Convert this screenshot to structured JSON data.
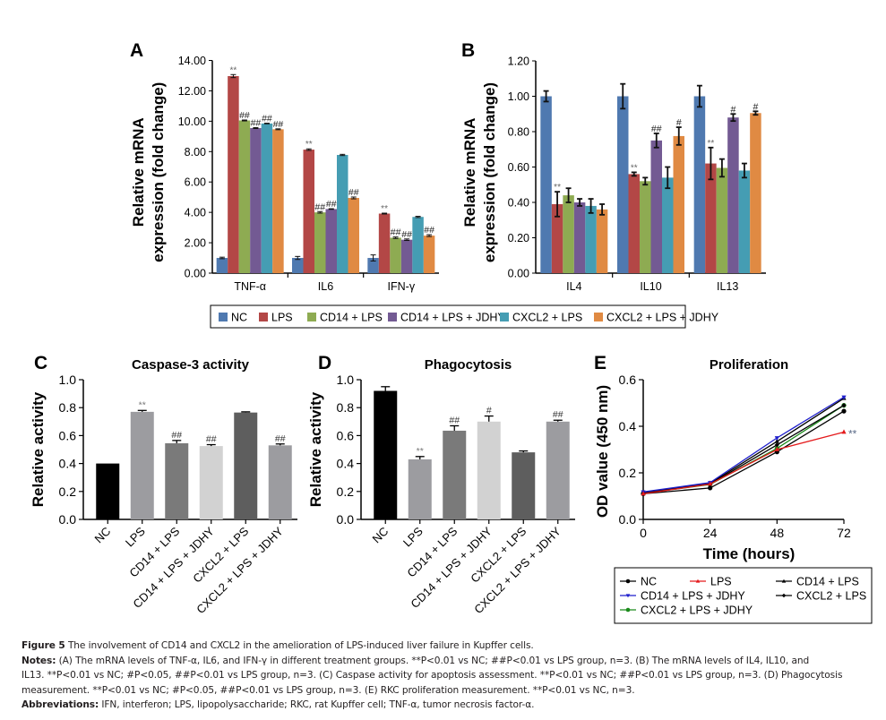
{
  "figure": {
    "panel_labels": [
      "A",
      "B",
      "C",
      "D",
      "E"
    ],
    "bar_legend": {
      "items": [
        {
          "label": "NC",
          "color": "#4f79b0"
        },
        {
          "label": "LPS",
          "color": "#b34746"
        },
        {
          "label": "CD14 + LPS",
          "color": "#8eab52"
        },
        {
          "label": "CD14 + LPS + JDHY",
          "color": "#735a93"
        },
        {
          "label": "CXCL2 + LPS",
          "color": "#459db3"
        },
        {
          "label": "CXCL2 + LPS + JDHY",
          "color": "#e08a43"
        }
      ]
    },
    "line_legend": {
      "items": [
        {
          "label": "NC",
          "color": "#000000",
          "marker": "circle"
        },
        {
          "label": "LPS",
          "color": "#e41a1c",
          "marker": "triangle-up"
        },
        {
          "label": "CD14 + LPS",
          "color": "#000000",
          "marker": "triangle-up"
        },
        {
          "label": "CD14 + LPS + JDHY",
          "color": "#1f1fcc",
          "marker": "triangle-down"
        },
        {
          "label": "CXCL2 + LPS",
          "color": "#000000",
          "marker": "diamond"
        },
        {
          "label": "CXCL2 + LPS + JDHY",
          "color": "#1a8a1a",
          "marker": "circle"
        }
      ]
    }
  },
  "chart_data": [
    {
      "panel": "A",
      "type": "bar",
      "title": "",
      "xlabel": "",
      "ylabel": [
        "Relative mRNA",
        "expression (fold change)"
      ],
      "ylim": [
        0,
        14
      ],
      "yticks": [
        "0.00",
        "2.00",
        "4.00",
        "6.00",
        "8.00",
        "10.00",
        "12.00",
        "14.00"
      ],
      "ytick_values": [
        0,
        2,
        4,
        6,
        8,
        10,
        12,
        14
      ],
      "categories": [
        "TNF-α",
        "IL6",
        "IFN-γ"
      ],
      "series": [
        {
          "name": "NC",
          "values": [
            1.0,
            1.0,
            1.0
          ],
          "errors": [
            0.05,
            0.1,
            0.2
          ],
          "annotations": [
            "",
            "",
            ""
          ]
        },
        {
          "name": "LPS",
          "values": [
            12.97,
            8.13,
            3.92
          ],
          "errors": [
            0.1,
            0.05,
            0.03
          ],
          "annotations": [
            "**",
            "**",
            "**"
          ]
        },
        {
          "name": "CD14 + LPS",
          "values": [
            10.05,
            4.0,
            2.33
          ],
          "errors": [
            0.03,
            0.05,
            0.05
          ],
          "annotations": [
            "##",
            "##",
            "##"
          ]
        },
        {
          "name": "CD14 + LPS + JDHY",
          "values": [
            9.55,
            4.22,
            2.2
          ],
          "errors": [
            0.03,
            0.02,
            0.05
          ],
          "annotations": [
            "##",
            "##",
            "##"
          ]
        },
        {
          "name": "CXCL2 + LPS",
          "values": [
            9.85,
            7.78,
            3.7
          ],
          "errors": [
            0.02,
            0.04,
            0.04
          ],
          "annotations": [
            "##",
            "",
            ""
          ]
        },
        {
          "name": "CXCL2 + LPS + JDHY",
          "values": [
            9.47,
            4.95,
            2.47
          ],
          "errors": [
            0.03,
            0.06,
            0.06
          ],
          "annotations": [
            "##",
            "##",
            "##"
          ]
        }
      ]
    },
    {
      "panel": "B",
      "type": "bar",
      "title": "",
      "xlabel": "",
      "ylabel": [
        "Relative mRNA",
        "expression (fold change)"
      ],
      "ylim": [
        0,
        1.2
      ],
      "yticks": [
        "0.00",
        "0.20",
        "0.40",
        "0.60",
        "0.80",
        "1.00",
        "1.20"
      ],
      "ytick_values": [
        0,
        0.2,
        0.4,
        0.6,
        0.8,
        1.0,
        1.2
      ],
      "categories": [
        "IL4",
        "IL10",
        "IL13"
      ],
      "series": [
        {
          "name": "NC",
          "values": [
            1.0,
            1.0,
            1.0
          ],
          "errors": [
            0.03,
            0.07,
            0.06
          ],
          "annotations": [
            "",
            "",
            ""
          ]
        },
        {
          "name": "LPS",
          "values": [
            0.39,
            0.56,
            0.62
          ],
          "errors": [
            0.07,
            0.01,
            0.09
          ],
          "annotations": [
            "**",
            "**",
            "**"
          ]
        },
        {
          "name": "CD14 + LPS",
          "values": [
            0.44,
            0.52,
            0.595
          ],
          "errors": [
            0.04,
            0.02,
            0.05
          ],
          "annotations": [
            "",
            "",
            ""
          ]
        },
        {
          "name": "CD14 + LPS + JDHY",
          "values": [
            0.4,
            0.75,
            0.88
          ],
          "errors": [
            0.02,
            0.04,
            0.02
          ],
          "annotations": [
            "",
            "##",
            "#"
          ]
        },
        {
          "name": "CXCL2 + LPS",
          "values": [
            0.38,
            0.54,
            0.58
          ],
          "errors": [
            0.04,
            0.06,
            0.04
          ],
          "annotations": [
            "",
            "",
            ""
          ]
        },
        {
          "name": "CXCL2 + LPS + JDHY",
          "values": [
            0.36,
            0.775,
            0.905
          ],
          "errors": [
            0.03,
            0.05,
            0.01
          ],
          "annotations": [
            "",
            "#",
            "#"
          ]
        }
      ]
    },
    {
      "panel": "C",
      "type": "bar",
      "title": "Caspase-3 activity",
      "xlabel": "",
      "ylabel": "Relative activity",
      "ylim": [
        0,
        1.0
      ],
      "yticks": [
        "0.0",
        "0.2",
        "0.4",
        "0.6",
        "0.8",
        "1.0"
      ],
      "ytick_values": [
        0,
        0.2,
        0.4,
        0.6,
        0.8,
        1.0
      ],
      "categories": [
        "NC",
        "LPS",
        "CD14 + LPS",
        "CD14 + LPS + JDHY",
        "CXCL2 + LPS",
        "CXCL2 + LPS + JDHY"
      ],
      "values": [
        0.4,
        0.77,
        0.545,
        0.525,
        0.765,
        0.53
      ],
      "errors": [
        0.0,
        0.01,
        0.02,
        0.01,
        0.005,
        0.01
      ],
      "annotations": [
        "",
        "**",
        "##",
        "##",
        "",
        "##"
      ],
      "colors": [
        "#000000",
        "#9c9ca0",
        "#7a7a7a",
        "#d2d2d2",
        "#5e5e5e",
        "#9c9ca0"
      ]
    },
    {
      "panel": "D",
      "type": "bar",
      "title": "Phagocytosis",
      "xlabel": "",
      "ylabel": "Relative activity",
      "ylim": [
        0,
        1.0
      ],
      "yticks": [
        "0.0",
        "0.2",
        "0.4",
        "0.6",
        "0.8",
        "1.0"
      ],
      "ytick_values": [
        0,
        0.2,
        0.4,
        0.6,
        0.8,
        1.0
      ],
      "categories": [
        "NC",
        "LPS",
        "CD14 + LPS",
        "CD14 + LPS + JDHY",
        "CXCL2 + LPS",
        "CXCL2 + LPS + JDHY"
      ],
      "values": [
        0.92,
        0.43,
        0.635,
        0.7,
        0.48,
        0.7
      ],
      "errors": [
        0.03,
        0.02,
        0.035,
        0.04,
        0.01,
        0.01
      ],
      "annotations": [
        "",
        "**",
        "##",
        "#",
        "",
        "##"
      ],
      "colors": [
        "#000000",
        "#9c9ca0",
        "#7a7a7a",
        "#d2d2d2",
        "#5e5e5e",
        "#9c9ca0"
      ]
    },
    {
      "panel": "E",
      "type": "line",
      "title": "Proliferation",
      "xlabel": "Time (hours)",
      "ylabel": "OD value (450 nm)",
      "xlim": [
        0,
        72
      ],
      "ylim": [
        0,
        0.6
      ],
      "xticks": [
        "0",
        "24",
        "48",
        "72"
      ],
      "xtick_values": [
        0,
        24,
        48,
        72
      ],
      "yticks": [
        "0.0",
        "0.2",
        "0.4",
        "0.6"
      ],
      "ytick_values": [
        0,
        0.2,
        0.4,
        0.6
      ],
      "legend_position": "below",
      "x": [
        0,
        24,
        48,
        72
      ],
      "series": [
        {
          "name": "NC",
          "values": [
            0.11,
            0.135,
            0.29,
            0.465
          ],
          "color": "#000000",
          "marker": "circle"
        },
        {
          "name": "LPS",
          "values": [
            0.11,
            0.152,
            0.3,
            0.375
          ],
          "color": "#e41a1c",
          "marker": "triangle-up",
          "annotation": "**"
        },
        {
          "name": "CD14 + LPS",
          "values": [
            0.115,
            0.155,
            0.335,
            0.52
          ],
          "color": "#000000",
          "marker": "triangle-up"
        },
        {
          "name": "CD14 + LPS + JDHY",
          "values": [
            0.118,
            0.158,
            0.35,
            0.525
          ],
          "color": "#1f1fcc",
          "marker": "triangle-down"
        },
        {
          "name": "CXCL2 + LPS",
          "values": [
            0.113,
            0.152,
            0.32,
            0.49
          ],
          "color": "#000000",
          "marker": "diamond"
        },
        {
          "name": "CXCL2 + LPS + JDHY",
          "values": [
            0.112,
            0.15,
            0.305,
            0.49
          ],
          "color": "#1a8a1a",
          "marker": "circle"
        }
      ]
    }
  ],
  "caption": {
    "title_label": "Figure 5",
    "title_text": " The involvement of CD14 and CXCL2 in the amelioration of LPS-induced liver failure in Kupffer cells.",
    "notes_label": "Notes:",
    "notes_lines": [
      " (A) The mRNA levels of TNF-α, IL6, and IFN-γ in different treatment groups. **P<0.01 vs NC; ##P<0.01 vs LPS group, n=3. (B) The mRNA levels of IL4, IL10, and",
      "IL13. **P<0.01 vs NC; #P<0.05, ##P<0.01 vs LPS group, n=3. (C) Caspase activity for apoptosis assessment. **P<0.01 vs NC; ##P<0.01 vs LPS group, n=3. (D) Phagocytosis",
      "measurement. **P<0.01 vs NC; #P<0.05, ##P<0.01 vs LPS group, n=3. (E) RKC proliferation measurement. **P<0.01 vs NC, n=3."
    ],
    "abbreviations_label": "Abbreviations:",
    "abbreviations_text": " IFN, interferon; LPS, lipopolysaccharide; RKC, rat Kupffer cell; TNF-α, tumor necrosis factor-α."
  }
}
